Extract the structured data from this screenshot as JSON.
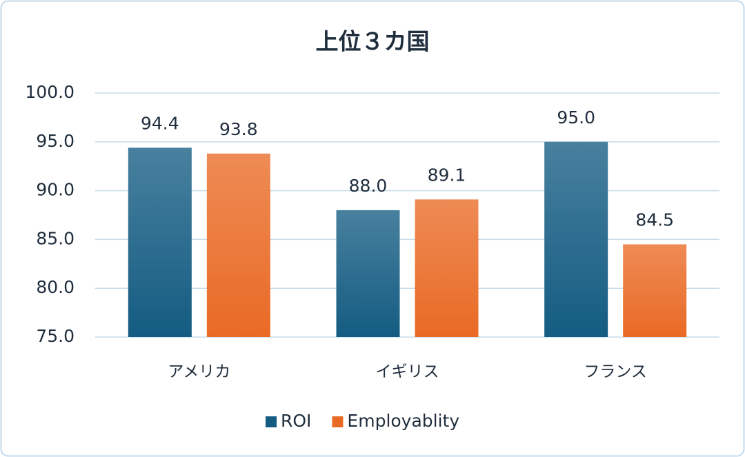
{
  "chart_data": {
    "type": "bar",
    "title": "上位３カ国",
    "categories": [
      "アメリカ",
      "イギリス",
      "フランス"
    ],
    "series": [
      {
        "name": "ROI",
        "color": "#145c82",
        "values": [
          94.4,
          88.0,
          95.0
        ],
        "value_labels": [
          "94.4",
          "88.0",
          "95.0"
        ]
      },
      {
        "name": "Employablity",
        "color": "#e96a25",
        "values": [
          93.8,
          89.1,
          84.5
        ],
        "value_labels": [
          "93.8",
          "89.1",
          "84.5"
        ]
      }
    ],
    "ylim": [
      75,
      100
    ],
    "yticks": [
      {
        "value": 75,
        "label": "75.0"
      },
      {
        "value": 80,
        "label": "80.0"
      },
      {
        "value": 85,
        "label": "85.0"
      },
      {
        "value": 90,
        "label": "90.0"
      },
      {
        "value": 95,
        "label": "95.0"
      },
      {
        "value": 100,
        "label": "100.0"
      }
    ],
    "grid": true,
    "legend": "bottom"
  }
}
